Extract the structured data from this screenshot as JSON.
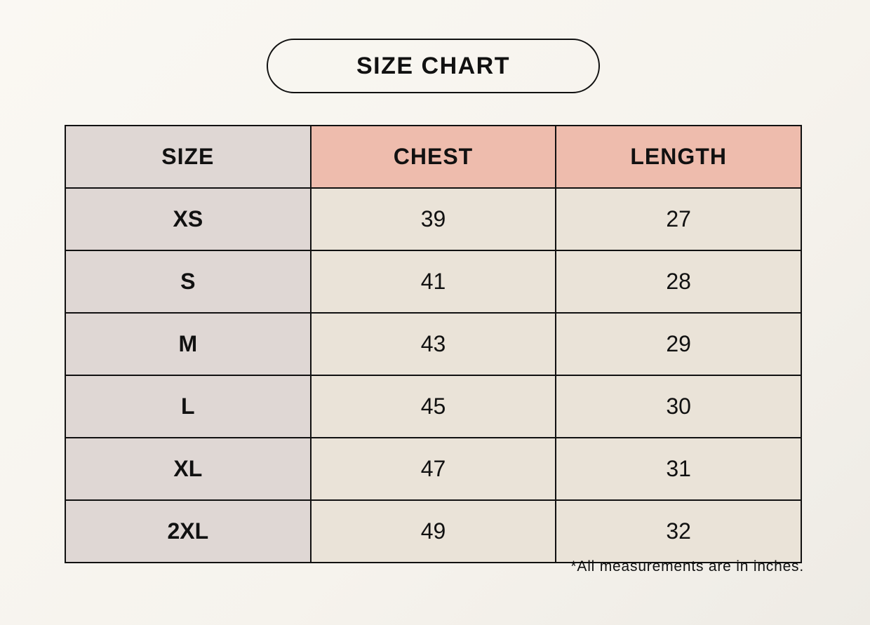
{
  "title": "SIZE CHART",
  "colors": {
    "size_column": "#dfd7d4",
    "header_measure": "#eebcad",
    "value_cells": "#eae3d8",
    "background": "#f8f6f1"
  },
  "table": {
    "headers": [
      "SIZE",
      "CHEST",
      "LENGTH"
    ],
    "rows": [
      {
        "size": "XS",
        "chest": "39",
        "length": "27"
      },
      {
        "size": "S",
        "chest": "41",
        "length": "28"
      },
      {
        "size": "M",
        "chest": "43",
        "length": "29"
      },
      {
        "size": "L",
        "chest": "45",
        "length": "30"
      },
      {
        "size": "XL",
        "chest": "47",
        "length": "31"
      },
      {
        "size": "2XL",
        "chest": "49",
        "length": "32"
      }
    ]
  },
  "note": "*All measurements are in inches."
}
